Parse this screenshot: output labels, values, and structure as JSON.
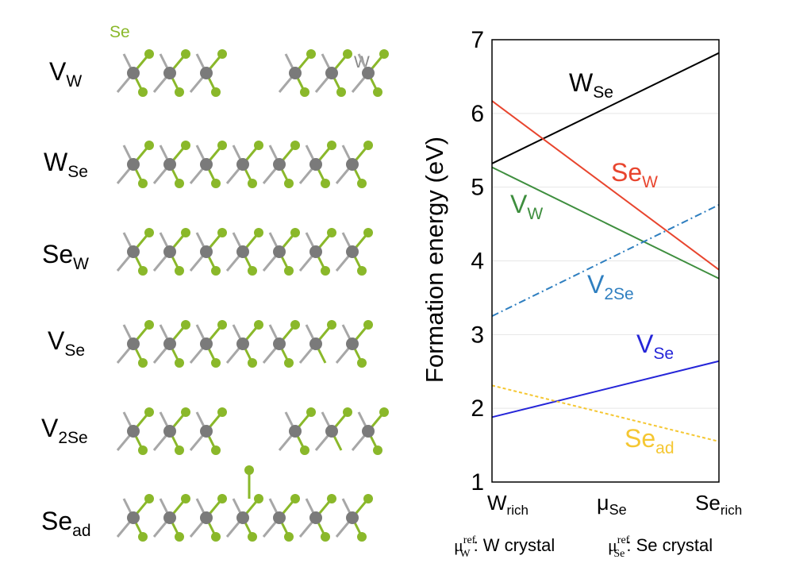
{
  "structures": {
    "se_atom_label": "Se",
    "w_atom_label": "W",
    "se_color": "#8ab82a",
    "w_color": "#7a7a7a",
    "rows": [
      {
        "id": "vw",
        "base": "V",
        "sub": "W"
      },
      {
        "id": "wse",
        "base": "W",
        "sub": "Se"
      },
      {
        "id": "sew",
        "base": "Se",
        "sub": "W"
      },
      {
        "id": "vse",
        "base": "V",
        "sub": "Se"
      },
      {
        "id": "v2se",
        "base": "V",
        "sub": "2Se"
      },
      {
        "id": "sead",
        "base": "Se",
        "sub": "ad"
      }
    ]
  },
  "chart_data": {
    "type": "line",
    "title": "",
    "ylabel": "Formation energy (eV)",
    "xlabel_base": "μ",
    "xlabel_sub": "Se",
    "xticks": [
      {
        "base": "W",
        "sub": "rich"
      },
      {
        "base": "Se",
        "sub": "rich"
      }
    ],
    "xlim": [
      0,
      1
    ],
    "ylim": [
      1,
      7
    ],
    "yticks": [
      1,
      2,
      3,
      4,
      5,
      6,
      7
    ],
    "grid": true,
    "series": [
      {
        "id": "wse",
        "label_base": "W",
        "label_sub": "Se",
        "color": "#000000",
        "style": "solid",
        "x": [
          0,
          1
        ],
        "y": [
          5.32,
          6.82
        ]
      },
      {
        "id": "sew",
        "label_base": "Se",
        "label_sub": "W",
        "color": "#e8452e",
        "style": "solid",
        "x": [
          0,
          1
        ],
        "y": [
          6.17,
          3.88
        ]
      },
      {
        "id": "vw",
        "label_base": "V",
        "label_sub": "W",
        "color": "#3e8e3e",
        "style": "solid",
        "x": [
          0,
          1
        ],
        "y": [
          5.27,
          3.76
        ]
      },
      {
        "id": "v2se",
        "label_base": "V",
        "label_sub": "2Se",
        "color": "#2f7fc0",
        "style": "dashdot",
        "x": [
          0,
          1
        ],
        "y": [
          3.25,
          4.76
        ]
      },
      {
        "id": "vse",
        "label_base": "V",
        "label_sub": "Se",
        "color": "#2525d8",
        "style": "solid",
        "x": [
          0,
          1
        ],
        "y": [
          1.88,
          2.64
        ]
      },
      {
        "id": "sead",
        "label_base": "Se",
        "label_sub": "ad",
        "color": "#f5c732",
        "style": "dotted",
        "x": [
          0,
          1
        ],
        "y": [
          2.31,
          1.55
        ]
      }
    ]
  },
  "footnote": {
    "mu": "μ",
    "sup": "ref",
    "w_sub": "W",
    "w_text": ": W crystal",
    "se_sub": "Se",
    "se_text": ": Se crystal"
  }
}
